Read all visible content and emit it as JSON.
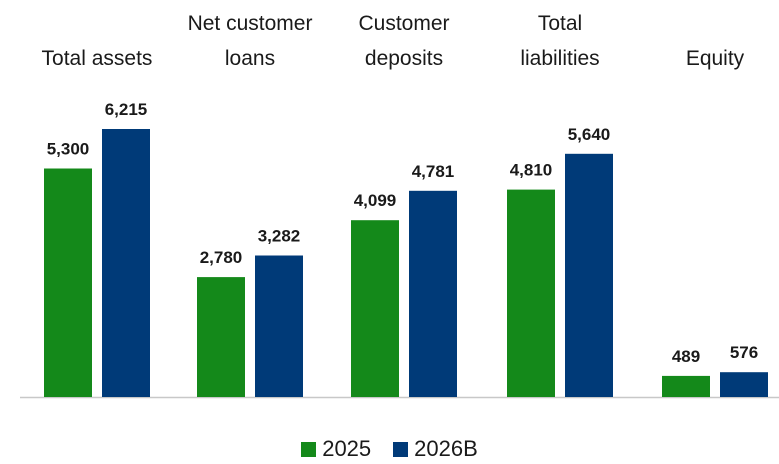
{
  "chart_data": {
    "type": "bar",
    "categories": [
      [
        "Total assets"
      ],
      [
        "Net customer",
        "loans"
      ],
      [
        "Customer",
        "deposits"
      ],
      [
        "Total",
        "liabilities"
      ],
      [
        "Equity"
      ]
    ],
    "series": [
      {
        "name": "2025",
        "color": "#14891a",
        "values": [
          5300,
          2780,
          4099,
          4810,
          489
        ],
        "labels": [
          "5,300",
          "2,780",
          "4,099",
          "4,810",
          "489"
        ]
      },
      {
        "name": "2026B",
        "color": "#003a78",
        "values": [
          6215,
          3282,
          4781,
          5640,
          576
        ],
        "labels": [
          "6,215",
          "3,282",
          "4,781",
          "5,640",
          "576"
        ]
      }
    ],
    "ylim": [
      0,
      7000
    ],
    "grid": false,
    "legend_position": "bottom-center"
  }
}
